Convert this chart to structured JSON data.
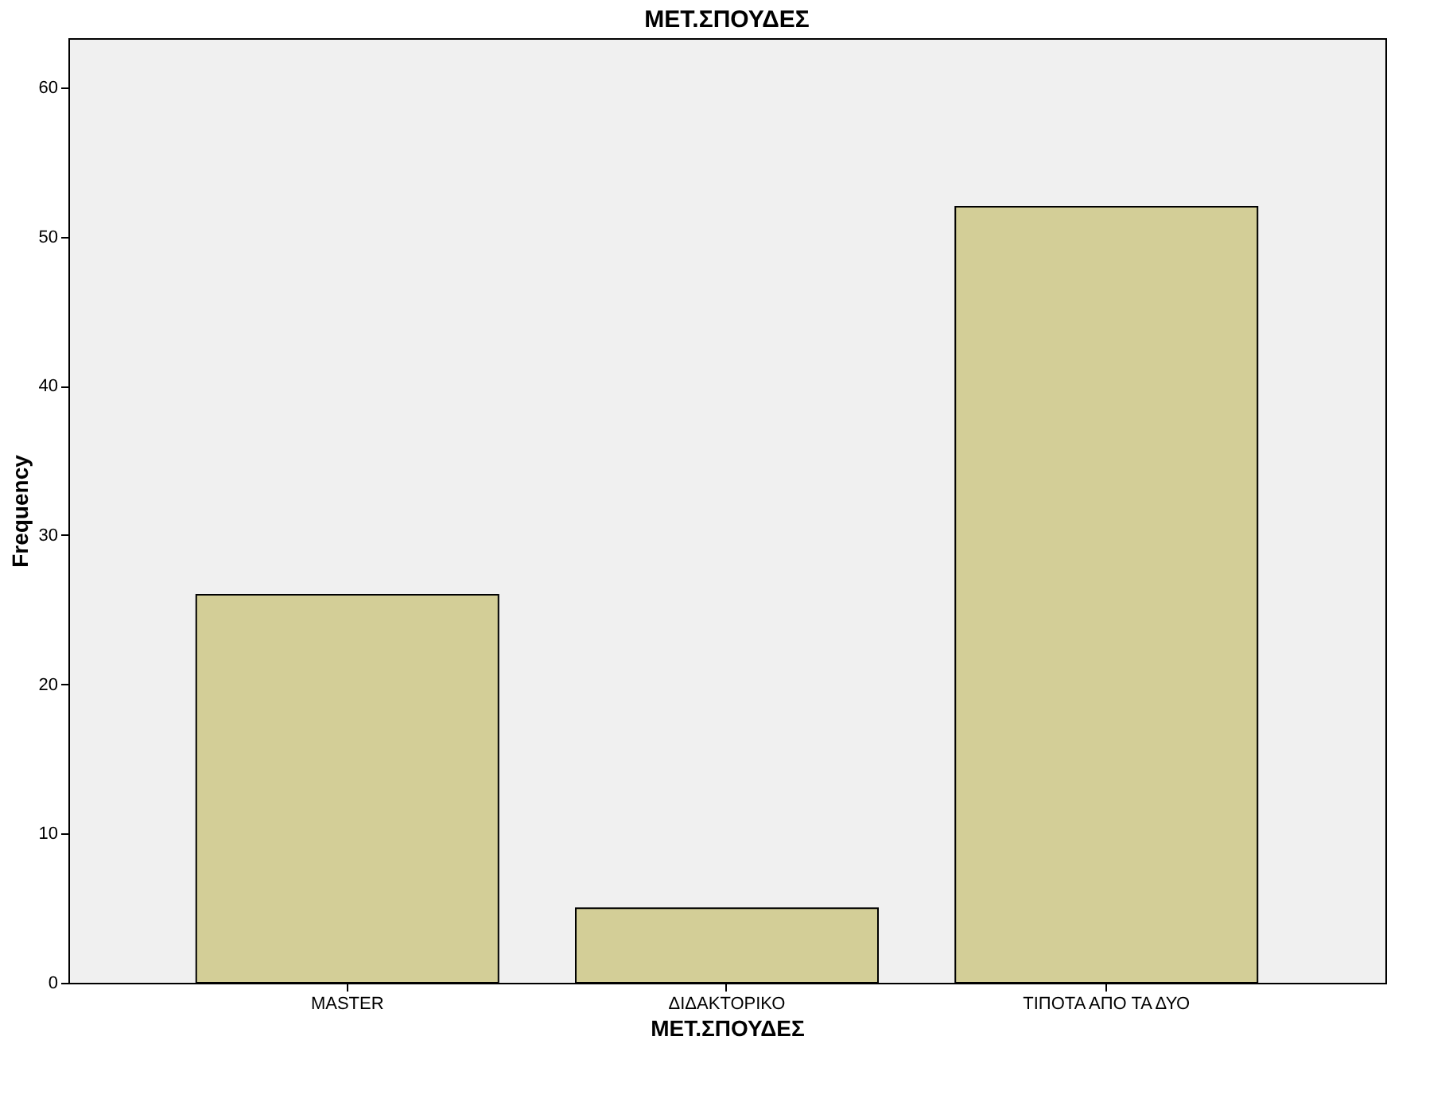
{
  "chart_data": {
    "type": "bar",
    "title": "ΜΕΤ.ΣΠΟΥΔΕΣ",
    "xlabel": "ΜΕΤ.ΣΠΟΥΔΕΣ",
    "ylabel": "Frequency",
    "categories": [
      "MASTER",
      "ΔΙΔΑΚΤΟΡΙΚΟ",
      "ΤΙΠΟΤΑ ΑΠΟ ΤΑ ΔΥΟ"
    ],
    "values": [
      26,
      5,
      52
    ],
    "color": "#d3ce97",
    "ylim": [
      0,
      63.3
    ],
    "yticks": [
      0,
      10,
      20,
      30,
      40,
      50,
      60
    ],
    "grid": false
  }
}
